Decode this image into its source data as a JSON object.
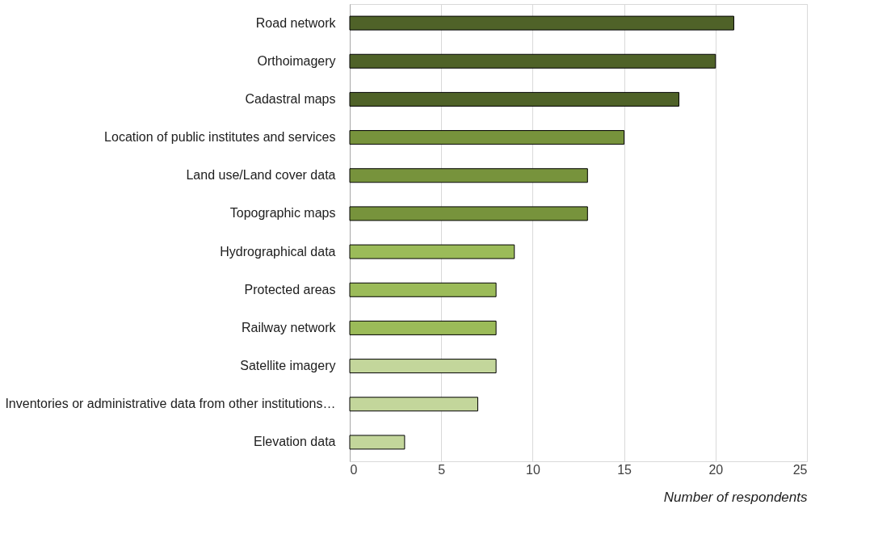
{
  "chart_data": {
    "type": "bar",
    "orientation": "horizontal",
    "xlabel": "Number of respondents",
    "categories": [
      "Road network",
      "Orthoimagery",
      "Cadastral maps",
      "Location of public institutes and services",
      "Land use/Land cover data",
      "Topographic maps",
      "Hydrographical data",
      "Protected areas",
      "Railway network",
      "Satellite imagery",
      "Inventories or administrative data from other institutions…",
      "Elevation data"
    ],
    "values": [
      21,
      20,
      18,
      15,
      13,
      13,
      9,
      8,
      8,
      8,
      7,
      3
    ],
    "colors": [
      "#4f6228",
      "#4f6228",
      "#4f6228",
      "#77933c",
      "#77933c",
      "#77933c",
      "#9bbb59",
      "#9bbb59",
      "#9bbb59",
      "#c3d69b",
      "#c3d69b",
      "#c3d69b"
    ],
    "xlim": [
      0,
      25
    ],
    "xticks": [
      0,
      5,
      10,
      15,
      20,
      25
    ],
    "grid": "x",
    "legend": false
  }
}
